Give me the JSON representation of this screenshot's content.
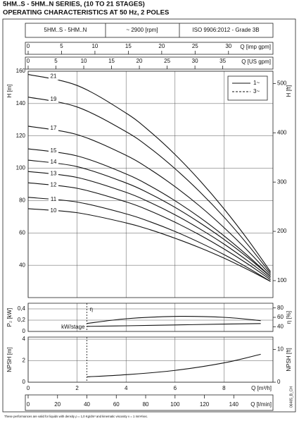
{
  "header": {
    "title": [
      "5HM..S - 5HM..N SERIES, (10 TO 21 STAGES)",
      "OPERATING CHARACTERISTICS AT 50 Hz, 2 POLES"
    ],
    "cells": [
      "5HM..S - 5HM..N",
      "~ 2900 [rpm]",
      "ISO 9906:2012 - Grade 3B"
    ]
  },
  "footnote": "These performances are valid for liquids with density ρ = 1,0 Kg/dm³ and kinematic viscosity ν = 1 mm²/sec.",
  "code": "06465_B_CH",
  "chart_data": [
    {
      "type": "line",
      "ylabel": "H [m]",
      "y2label": "H [ft]",
      "xlim": [
        0,
        10
      ],
      "ylim": [
        20,
        160
      ],
      "yticks": [
        40,
        60,
        80,
        100,
        120,
        140,
        160
      ],
      "y2lim": [
        65.62,
        524.93
      ],
      "y2ticks": [
        100,
        200,
        300,
        400,
        500
      ],
      "grid": true,
      "top_axes": [
        {
          "label": "Q [imp gpm]",
          "lim": [
            0,
            36.66
          ],
          "ticks": [
            0,
            5,
            10,
            15,
            20,
            25,
            30
          ]
        },
        {
          "label": "Q [US gpm]",
          "lim": [
            0,
            44.03
          ],
          "ticks": [
            0,
            5,
            10,
            15,
            20,
            25,
            30,
            35
          ]
        }
      ],
      "legend": [
        {
          "name": "1~",
          "style": "solid"
        },
        {
          "name": "3~",
          "style": "dashed"
        }
      ],
      "legend_position": "upper right",
      "x": [
        0,
        2,
        4,
        5,
        6,
        7,
        8,
        9,
        9.9
      ],
      "series": [
        {
          "name": "21",
          "color": "#111111",
          "values": [
            158,
            151.2,
            134.1,
            122.4,
            108.5,
            92.6,
            74.9,
            55.3,
            36
          ]
        },
        {
          "name": "19",
          "color": "#111111",
          "values": [
            144,
            137.9,
            122.6,
            112.2,
            99.7,
            85.6,
            69.8,
            52.2,
            35
          ]
        },
        {
          "name": "17",
          "color": "#111111",
          "values": [
            126,
            120.8,
            108.0,
            99.1,
            88.6,
            76.7,
            63.3,
            48.5,
            34
          ]
        },
        {
          "name": "15",
          "color": "#111111",
          "values": [
            112,
            107.6,
            96.5,
            88.9,
            79.9,
            69.7,
            58.2,
            45.5,
            33
          ]
        },
        {
          "name": "14",
          "color": "#111111",
          "values": [
            105,
            101.0,
            90.9,
            84.0,
            75.8,
            66.4,
            56.0,
            44.4,
            33
          ]
        },
        {
          "name": "13",
          "color": "#111111",
          "values": [
            98,
            94.3,
            85.1,
            78.7,
            71.2,
            62.6,
            53.1,
            42.4,
            32
          ]
        },
        {
          "name": "12",
          "color": "#111111",
          "values": [
            91,
            87.6,
            79.2,
            73.5,
            66.6,
            58.8,
            50.1,
            40.5,
            31
          ]
        },
        {
          "name": "11",
          "color": "#111111",
          "values": [
            82,
            79.1,
            71.8,
            66.8,
            60.9,
            54.1,
            46.6,
            38.2,
            30
          ]
        },
        {
          "name": "10",
          "color": "#111111",
          "values": [
            75,
            72.5,
            66.2,
            61.9,
            56.7,
            50.9,
            44.4,
            37.1,
            30
          ]
        }
      ]
    },
    {
      "type": "line",
      "ylabel": "P₂ [kW]",
      "y2label": "η [%]",
      "xlim": [
        0,
        10
      ],
      "ylim": [
        0,
        0.5
      ],
      "yticks": [
        0,
        {
          "value": 0.2,
          "label": "0,2"
        },
        {
          "value": 0.4,
          "label": "0,4"
        }
      ],
      "y2lim": [
        30,
        90
      ],
      "y2ticks": [
        40,
        60,
        80
      ],
      "grid": true,
      "x": [
        2.4,
        4,
        6,
        8,
        9.5
      ],
      "series": [
        {
          "name": "kW/stage",
          "color": "#111111",
          "values": [
            0.09,
            0.1,
            0.115,
            0.13,
            0.14
          ]
        },
        {
          "name": "η",
          "color": "#111111",
          "axis": "y2",
          "values": [
            47,
            57,
            62,
            60,
            53
          ]
        }
      ]
    },
    {
      "type": "line",
      "ylabel": "NPSH [m]",
      "y2label": "NPSH [ft]",
      "xlabel": "Q [m³/h]",
      "xlim": [
        0,
        10
      ],
      "xticks": [
        0,
        2,
        4,
        6,
        8
      ],
      "ylim": [
        0,
        4.2
      ],
      "yticks": [
        0,
        2,
        4
      ],
      "y2lim": [
        0,
        13.78
      ],
      "y2ticks": [
        0,
        10
      ],
      "grid": true,
      "bottom_axis": {
        "label": "Q [l/min]",
        "lim": [
          0,
          166.67
        ],
        "ticks": [
          0,
          20,
          40,
          60,
          80,
          100,
          120,
          140
        ]
      },
      "x": [
        2.4,
        4,
        6,
        8,
        9.5
      ],
      "values": [
        0.5,
        0.7,
        1.1,
        1.8,
        2.6
      ],
      "color": "#111111"
    }
  ]
}
